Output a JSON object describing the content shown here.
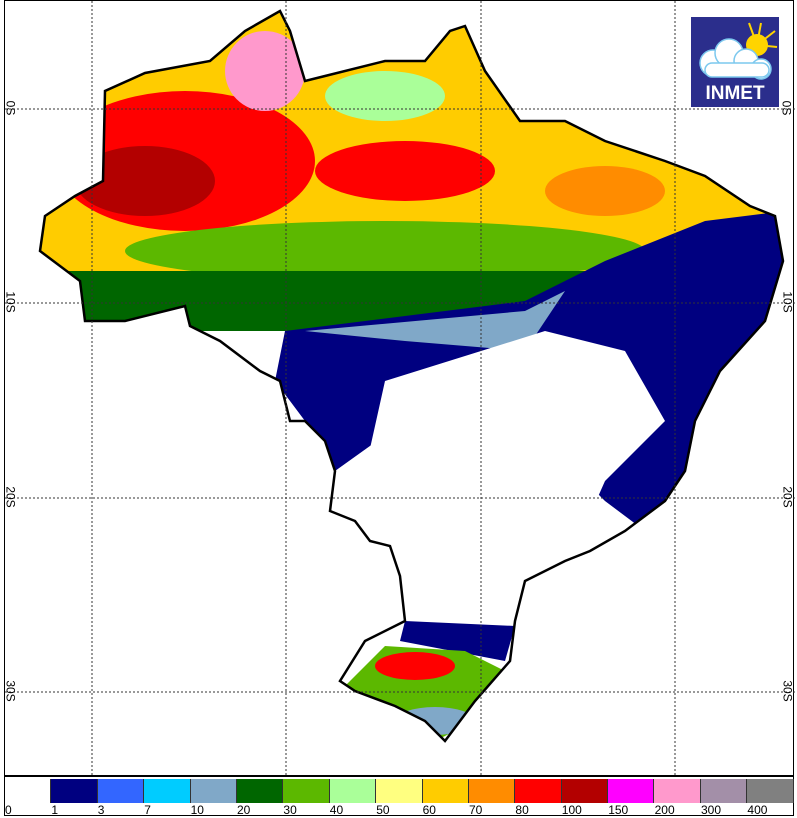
{
  "map": {
    "latitude_labels": [
      "0S",
      "10S",
      "20S",
      "30S"
    ],
    "logo": {
      "text": "INMET",
      "icon": "cloud-sun-icon",
      "bg": "#2b2e8c"
    }
  },
  "legend": {
    "labels": [
      "0",
      "1",
      "3",
      "7",
      "10",
      "20",
      "30",
      "40",
      "50",
      "60",
      "70",
      "80",
      "100",
      "150",
      "200",
      "300",
      "400"
    ],
    "colors": [
      "#ffffff",
      "#000080",
      "#3366ff",
      "#00ccff",
      "#80a8c8",
      "#006600",
      "#5cb800",
      "#aaff99",
      "#ffff80",
      "#ffcc00",
      "#ff8c00",
      "#ff0000",
      "#b30000",
      "#ff00ff",
      "#ff99cc",
      "#a38fa8",
      "#808080"
    ]
  }
}
